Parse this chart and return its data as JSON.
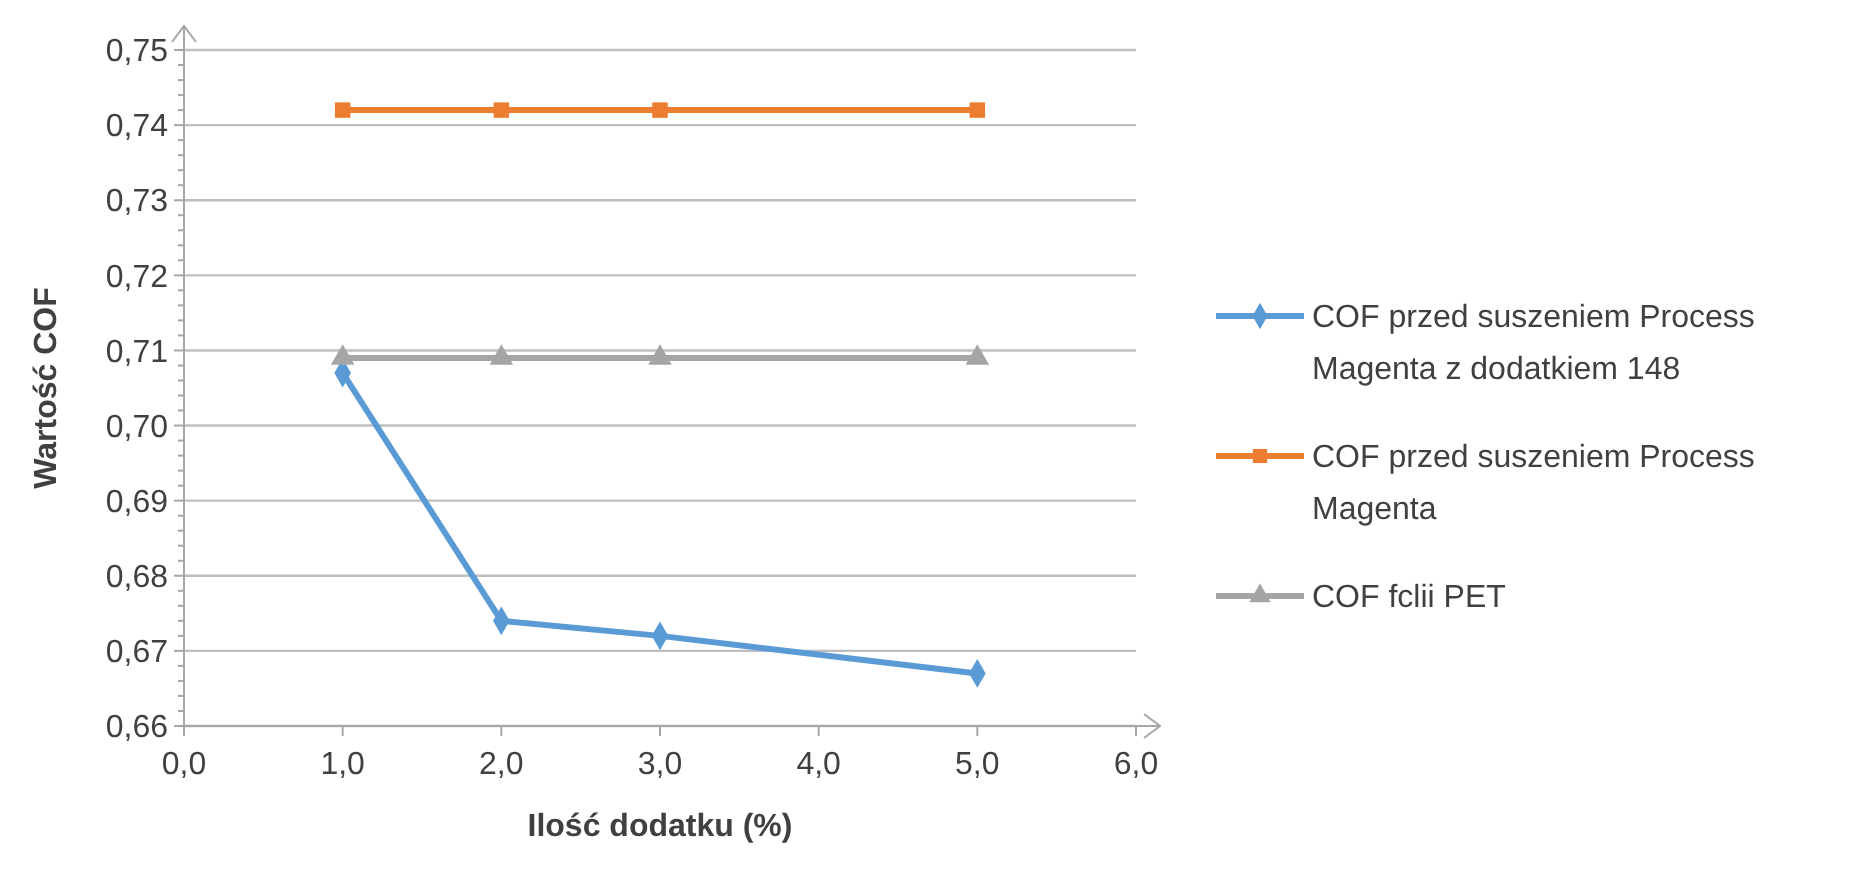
{
  "chart_data": {
    "type": "line",
    "xlabel": "Ilość dodatku (%)",
    "ylabel": "Wartość COF",
    "x": [
      1,
      2,
      3,
      5
    ],
    "series": [
      {
        "name": "COF przed suszeniem Process Magenta  z dodatkiem 148",
        "color": "#5b9bd5",
        "marker": "diamond",
        "values": [
          0.707,
          0.674,
          0.672,
          0.667
        ]
      },
      {
        "name": "COF przed suszeniem Process Magenta",
        "color": "#ed7d31",
        "marker": "square",
        "values": [
          0.742,
          0.742,
          0.742,
          0.742
        ]
      },
      {
        "name": "COF fclii PET",
        "color": "#a5a5a5",
        "marker": "triangle",
        "values": [
          0.709,
          0.709,
          0.709,
          0.709
        ]
      }
    ],
    "xlim": [
      0,
      6
    ],
    "xticks": [
      {
        "value": 0,
        "label": "0,0"
      },
      {
        "value": 1,
        "label": "1,0"
      },
      {
        "value": 2,
        "label": "2,0"
      },
      {
        "value": 3,
        "label": "3,0"
      },
      {
        "value": 4,
        "label": "4,0"
      },
      {
        "value": 5,
        "label": "5,0"
      },
      {
        "value": 6,
        "label": "6,0"
      }
    ],
    "ylim": [
      0.66,
      0.75
    ],
    "yticks": [
      {
        "value": 0.66,
        "label": "0,66"
      },
      {
        "value": 0.67,
        "label": "0,67"
      },
      {
        "value": 0.68,
        "label": "0,68"
      },
      {
        "value": 0.69,
        "label": "0,69"
      },
      {
        "value": 0.7,
        "label": "0,70"
      },
      {
        "value": 0.71,
        "label": "0,71"
      },
      {
        "value": 0.72,
        "label": "0,72"
      },
      {
        "value": 0.73,
        "label": "0,73"
      },
      {
        "value": 0.74,
        "label": "0,74"
      },
      {
        "value": 0.75,
        "label": "0,75"
      }
    ],
    "grid": "y",
    "legend": "right"
  }
}
